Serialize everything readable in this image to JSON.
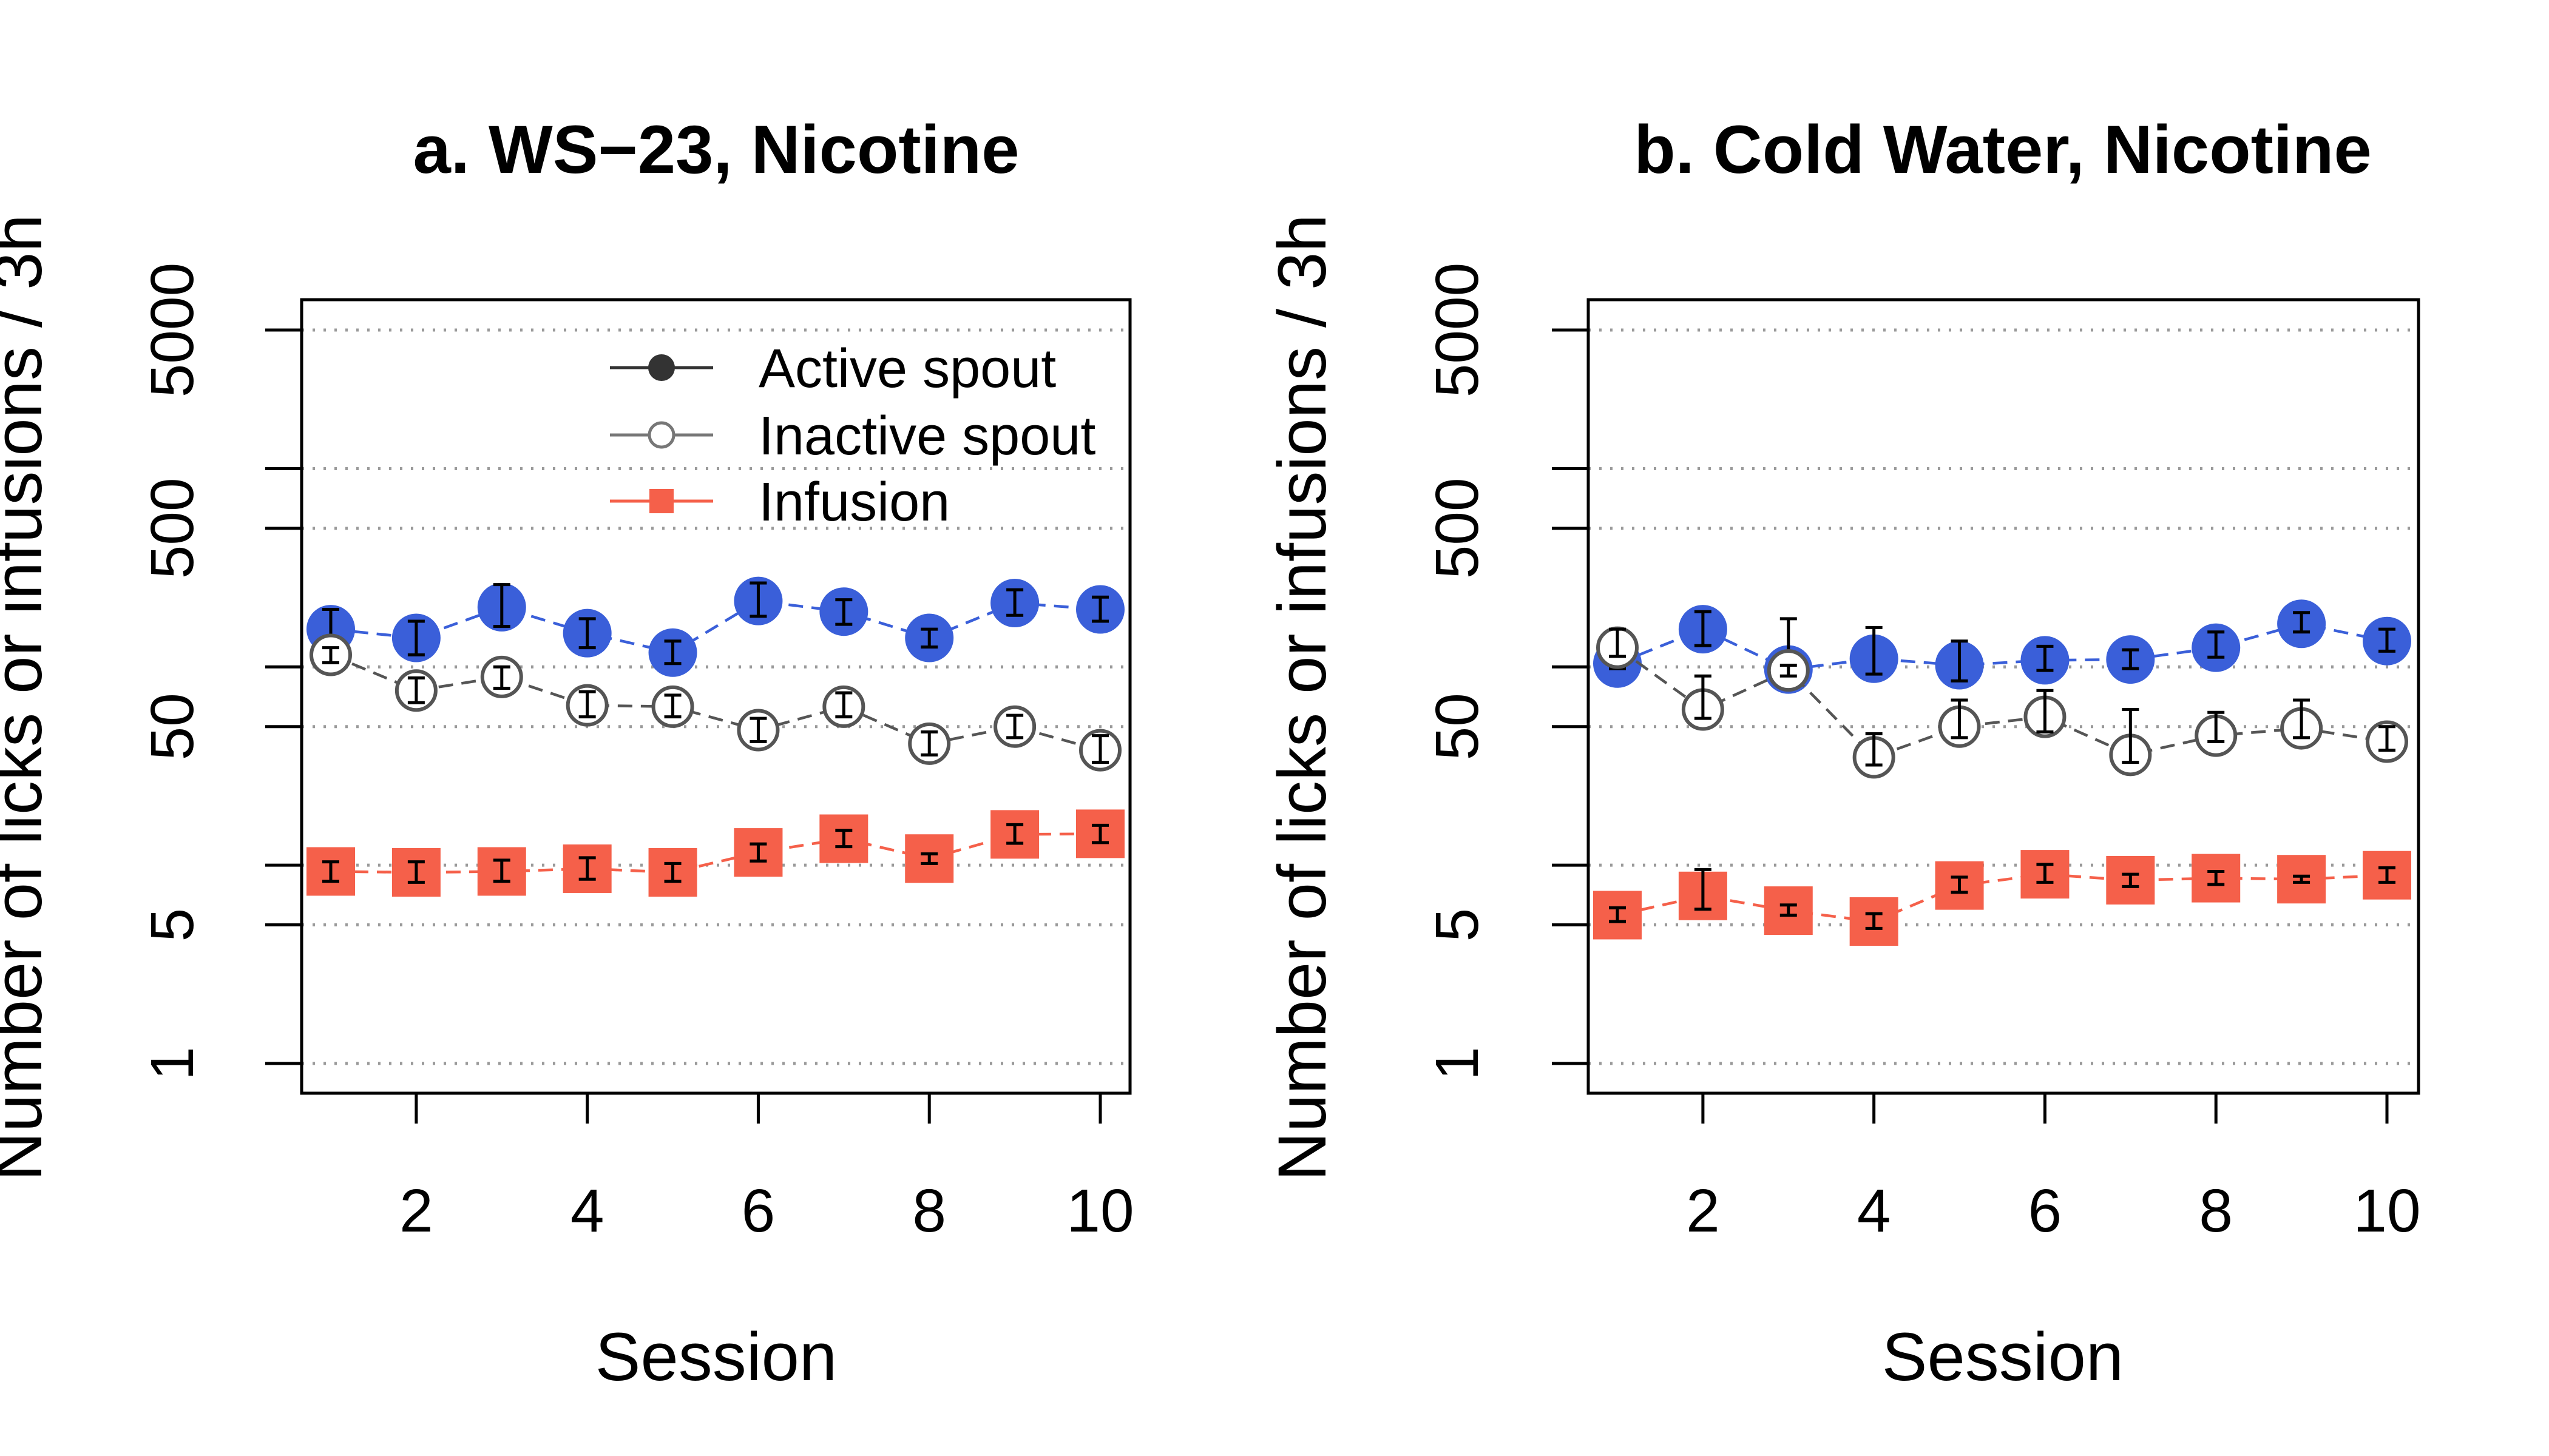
{
  "chart_data": [
    {
      "type": "line",
      "title": "a. WS−23, Nicotine",
      "xlabel": "Session",
      "ylabel": "Number of licks or infusions / 3h",
      "y_scale": "log",
      "ylim": [
        1,
        5000
      ],
      "x_ticks": [
        2,
        4,
        6,
        8,
        10
      ],
      "y_ticks": [
        1,
        5,
        50,
        500,
        5000
      ],
      "y_gridlines": [
        1,
        5,
        10,
        50,
        100,
        500,
        1000,
        5000
      ],
      "grid": "horizontal dotted",
      "x": [
        1,
        2,
        3,
        4,
        5,
        6,
        7,
        8,
        9,
        10
      ],
      "series": [
        {
          "name": "Active spout",
          "marker": "filled circle",
          "color": "#3a5fd9",
          "values": [
            155,
            140,
            200,
            148,
            118,
            215,
            190,
            140,
            210,
            195
          ],
          "err_low": [
            125,
            115,
            160,
            125,
            104,
            180,
            164,
            126,
            182,
            170
          ],
          "err_high": [
            195,
            170,
            260,
            175,
            135,
            265,
            218,
            155,
            245,
            225
          ]
        },
        {
          "name": "Inactive spout",
          "marker": "open circle",
          "color": "#555555",
          "values": [
            115,
            76,
            89,
            64,
            63,
            48,
            63,
            41,
            50,
            38
          ],
          "err_low": [
            105,
            66,
            78,
            56,
            56,
            42,
            56,
            36,
            44,
            33
          ],
          "err_high": [
            125,
            88,
            100,
            75,
            72,
            55,
            74,
            47,
            57,
            45
          ]
        },
        {
          "name": "Infusion",
          "marker": "filled square",
          "color": "#f5604a",
          "values": [
            9.3,
            9.2,
            9.3,
            9.6,
            9.2,
            11.6,
            13.6,
            10.8,
            14.3,
            14.4
          ],
          "err_low": [
            8.3,
            8.2,
            8.3,
            8.5,
            8.3,
            10.5,
            12.4,
            10.2,
            12.9,
            13.0
          ],
          "err_high": [
            10.4,
            10.4,
            10.6,
            10.9,
            10.2,
            12.8,
            15.0,
            11.4,
            16.0,
            15.9
          ]
        }
      ],
      "legend": {
        "placement": "top-right",
        "entries": [
          "Active spout",
          "Inactive spout",
          "Infusion"
        ]
      }
    },
    {
      "type": "line",
      "title": "b. Cold Water, Nicotine",
      "xlabel": "Session",
      "ylabel": "Number of licks or infusions / 3h",
      "y_scale": "log",
      "ylim": [
        1,
        5000
      ],
      "x_ticks": [
        2,
        4,
        6,
        8,
        10
      ],
      "y_ticks": [
        1,
        5,
        50,
        500,
        5000
      ],
      "y_gridlines": [
        1,
        5,
        10,
        50,
        100,
        500,
        1000,
        5000
      ],
      "grid": "horizontal dotted",
      "x": [
        1,
        2,
        3,
        4,
        5,
        6,
        7,
        8,
        9,
        10
      ],
      "series": [
        {
          "name": "Active spout",
          "marker": "filled circle",
          "color": "#3a5fd9",
          "values": [
            104,
            155,
            97,
            110,
            102,
            108,
            109,
            125,
            165,
            135
          ],
          "err_low": [
            98,
            128,
            88,
            92,
            85,
            96,
            98,
            112,
            150,
            120
          ],
          "err_high": [
            110,
            190,
            175,
            158,
            135,
            127,
            122,
            150,
            188,
            155
          ]
        },
        {
          "name": "Inactive spout",
          "marker": "open circle",
          "color": "#555555",
          "values": [
            125,
            61,
            96,
            35,
            50,
            56,
            36,
            45,
            49,
            42
          ],
          "err_low": [
            113,
            55,
            90,
            32,
            44,
            47,
            33,
            42,
            44,
            38
          ],
          "err_high": [
            155,
            90,
            102,
            46,
            68,
            76,
            61,
            59,
            68,
            50
          ]
        },
        {
          "name": "Infusion",
          "marker": "filled square",
          "color": "#f5604a",
          "values": [
            5.6,
            7.0,
            5.9,
            5.2,
            7.9,
            9.0,
            8.4,
            8.6,
            8.5,
            8.9
          ],
          "err_low": [
            5.2,
            6.0,
            5.6,
            4.8,
            7.3,
            8.2,
            7.8,
            8.0,
            8.2,
            8.2
          ],
          "err_high": [
            6.1,
            9.5,
            6.3,
            5.7,
            8.7,
            10.1,
            9.0,
            9.3,
            8.8,
            9.7
          ]
        }
      ],
      "legend": null
    }
  ]
}
